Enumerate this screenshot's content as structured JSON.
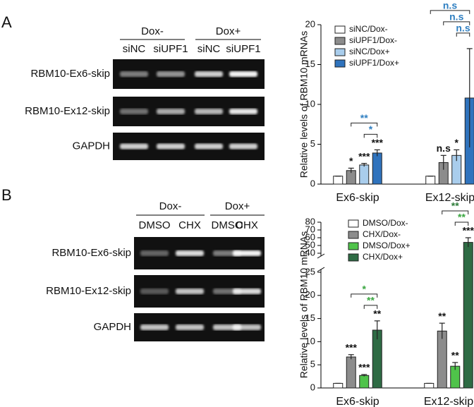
{
  "panels": [
    {
      "label": "A",
      "gel": {
        "groups": [
          "Dox-",
          "Dox+"
        ],
        "lanes": [
          "siNC",
          "siUPF1",
          "siNC",
          "siUPF1"
        ],
        "rows": [
          "RBM10-Ex6-skip",
          "RBM10-Ex12-skip",
          "GAPDH"
        ]
      }
    },
    {
      "label": "B",
      "gel": {
        "groups": [
          "Dox-",
          "Dox+"
        ],
        "lanes": [
          "DMSO",
          "CHX",
          "DMSO",
          "CHX"
        ],
        "rows": [
          "RBM10-Ex6-skip",
          "RBM10-Ex12-skip",
          "GAPDH"
        ]
      }
    }
  ],
  "chart_data": [
    {
      "type": "bar",
      "ylabel": "Relative levels of RBM10 mRNAs",
      "categories": [
        "Ex6-skip",
        "Ex12-skip"
      ],
      "ylim": [
        0,
        20
      ],
      "yticks": [
        0,
        5,
        10,
        15,
        20
      ],
      "series": [
        {
          "name": "siNC/Dox-",
          "color": "#ffffff",
          "values": [
            1,
            1
          ],
          "errors": [
            0,
            0
          ],
          "sig_labels": [
            null,
            null
          ]
        },
        {
          "name": "siUPF1/Dox-",
          "color": "#8c8c8c",
          "values": [
            1.7,
            2.7
          ],
          "errors": [
            0.3,
            0.9
          ],
          "sig_labels": [
            "*",
            "n.s"
          ]
        },
        {
          "name": "siNC/Dox+",
          "color": "#a9cdec",
          "values": [
            2.4,
            3.6
          ],
          "errors": [
            0.2,
            0.7
          ],
          "sig_labels": [
            "***",
            "*"
          ]
        },
        {
          "name": "siUPF1/Dox+",
          "color": "#2f73bd",
          "values": [
            3.9,
            10.8
          ],
          "errors": [
            0.4,
            6.2
          ],
          "sig_labels": [
            "***",
            null
          ]
        }
      ],
      "brackets": [
        {
          "category": 0,
          "from": 2,
          "to": 3,
          "label": "*",
          "color": "#2f7fc1"
        },
        {
          "category": 0,
          "from": 1,
          "to": 3,
          "label": "**",
          "color": "#2f7fc1"
        },
        {
          "category": 1,
          "from": 2,
          "to": 3,
          "label": "n.s",
          "color": "#2f7fc1"
        },
        {
          "category": 1,
          "from": 1,
          "to": 3,
          "label": "n.s",
          "color": "#2f7fc1"
        },
        {
          "category": 1,
          "from": 0,
          "to": 3,
          "label": "n.s",
          "color": "#2f7fc1"
        }
      ]
    },
    {
      "type": "bar",
      "ylabel": "Relative levels of RBM10 mRNAs",
      "categories": [
        "Ex6-skip",
        "Ex12-skip"
      ],
      "ylim": [
        0,
        80
      ],
      "y_break": [
        25,
        40
      ],
      "yticks": [
        0,
        5,
        10,
        15,
        20,
        25,
        40,
        50,
        60,
        70,
        80
      ],
      "series": [
        {
          "name": "DMSO/Dox-",
          "color": "#ffffff",
          "values": [
            1,
            1
          ],
          "errors": [
            0,
            0
          ],
          "sig_labels": [
            null,
            null
          ]
        },
        {
          "name": "CHX/Dox-",
          "color": "#8c8c8c",
          "values": [
            6.7,
            12.3
          ],
          "errors": [
            0.5,
            1.7
          ],
          "sig_labels": [
            "***",
            "**"
          ]
        },
        {
          "name": "DMSO/Dox+",
          "color": "#4fc34a",
          "values": [
            2.7,
            4.7
          ],
          "errors": [
            0.2,
            0.8
          ],
          "sig_labels": [
            "***",
            "**"
          ]
        },
        {
          "name": "CHX/Dox+",
          "color": "#2e6b44",
          "values": [
            12.5,
            54
          ],
          "errors": [
            2,
            6
          ],
          "sig_labels": [
            "**",
            "***"
          ]
        }
      ],
      "brackets": [
        {
          "category": 0,
          "from": 2,
          "to": 3,
          "label": "**",
          "color": "#3aa640"
        },
        {
          "category": 0,
          "from": 1,
          "to": 3,
          "label": "*",
          "color": "#3aa640"
        },
        {
          "category": 1,
          "from": 2,
          "to": 3,
          "label": "**",
          "color": "#3aa640"
        },
        {
          "category": 1,
          "from": 1,
          "to": 3,
          "label": "**",
          "color": "#2e7d3a"
        }
      ]
    }
  ]
}
